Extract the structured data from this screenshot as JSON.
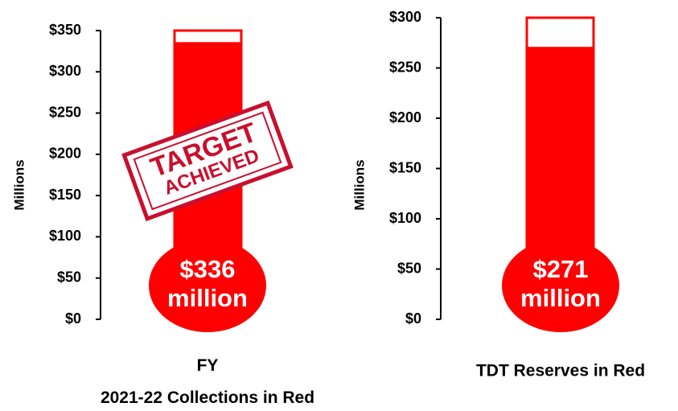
{
  "chart_data": [
    {
      "type": "thermometer",
      "title": "FY 2021-22 Collections in Red",
      "y_label": "Millions",
      "values": [
        336
      ],
      "value_labels": [
        "$336 million"
      ],
      "color": "#ff0000",
      "ylim": [
        0,
        350
      ],
      "yticks": [
        {
          "value": 0,
          "label": "$0"
        },
        {
          "value": 50,
          "label": "$50"
        },
        {
          "value": 100,
          "label": "$100"
        },
        {
          "value": 150,
          "label": "$150"
        },
        {
          "value": 200,
          "label": "$200"
        },
        {
          "value": 250,
          "label": "$250"
        },
        {
          "value": 300,
          "label": "$300"
        },
        {
          "value": 350,
          "label": "$350"
        }
      ],
      "annotation": [
        "TARGET",
        "ACHIEVED"
      ]
    },
    {
      "type": "thermometer",
      "title": "TDT Reserves in Red",
      "y_label": "Millions",
      "values": [
        271
      ],
      "value_labels": [
        "$271 million"
      ],
      "color": "#ff0000",
      "ylim": [
        0,
        300
      ],
      "yticks": [
        {
          "value": 0,
          "label": "$0"
        },
        {
          "value": 50,
          "label": "$50"
        },
        {
          "value": 100,
          "label": "$100"
        },
        {
          "value": 150,
          "label": "$150"
        },
        {
          "value": 200,
          "label": "$200"
        },
        {
          "value": 250,
          "label": "$250"
        },
        {
          "value": 300,
          "label": "$300"
        }
      ]
    }
  ]
}
